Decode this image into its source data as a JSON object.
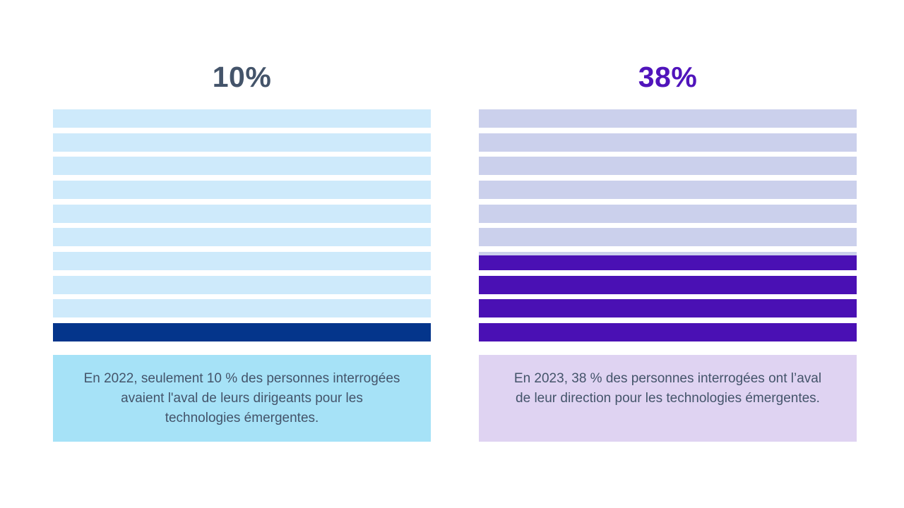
{
  "chart_data": [
    {
      "type": "bar",
      "subtype": "stacked-stripe-progress",
      "title": "10%",
      "value_percent": 10,
      "total_bars": 10,
      "filled_bars": 1,
      "fill_direction": "bottom-up",
      "legend_position": "none",
      "grid": false,
      "colors": {
        "title": "#44546A",
        "bar_light": "#CEEAFB",
        "bar_dark": "#04358B",
        "caption_bg": "#A6E2F7",
        "caption_text": "#44546A"
      },
      "caption_lines": [
        "En 2022, seulement 10 % des personnes interrogées",
        "avaient l'aval de leurs dirigeants pour les",
        "technologies émergentes."
      ]
    },
    {
      "type": "bar",
      "subtype": "stacked-stripe-progress",
      "title": "38%",
      "value_percent": 38,
      "total_bars": 10,
      "filled_bars": 3.8,
      "fill_direction": "bottom-up",
      "legend_position": "none",
      "grid": false,
      "colors": {
        "title": "#5014BB",
        "bar_light": "#CBD0EC",
        "bar_dark": "#4A10B4",
        "caption_bg": "#DFD3F2",
        "caption_text": "#44546A"
      },
      "caption_lines": [
        "En 2023, 38 % des personnes interrogées ont l’aval",
        "de leur direction pour les technologies émergentes."
      ]
    }
  ]
}
